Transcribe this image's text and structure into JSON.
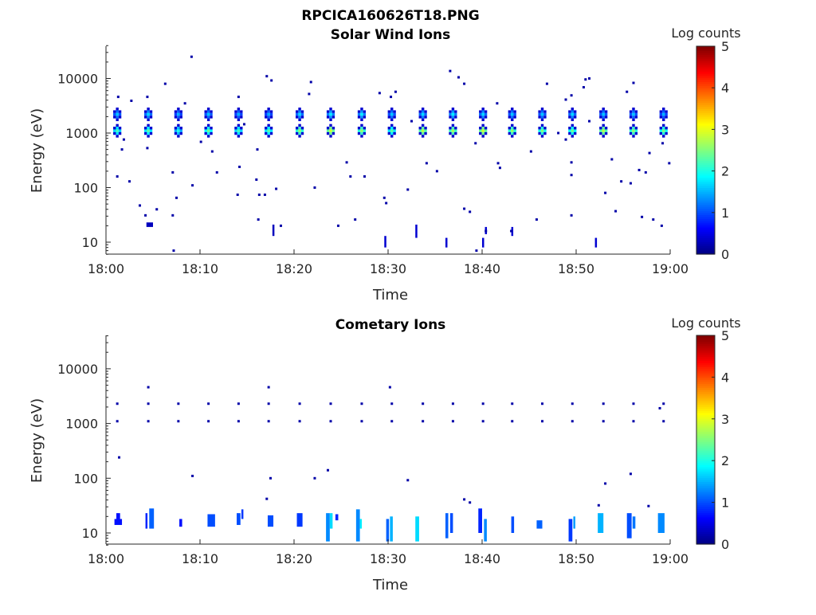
{
  "figure_title": "RPCICA160626T18.PNG",
  "chart_data": [
    {
      "type": "heatmap",
      "title": "Solar Wind Ions",
      "xlabel": "Time",
      "ylabel": "Energy (eV)",
      "x_tick_labels": [
        "18:00",
        "18:10",
        "18:20",
        "18:30",
        "18:40",
        "18:50",
        "19:00"
      ],
      "x_ticks_minutes": [
        0,
        10,
        20,
        30,
        40,
        50,
        60
      ],
      "xlim_minutes": [
        0,
        60
      ],
      "y_scale": "log",
      "y_tick_values": [
        10,
        100,
        1000,
        10000
      ],
      "y_tick_labels": [
        "10",
        "100",
        "1000",
        "10000"
      ],
      "ylim": [
        6,
        40000
      ],
      "colorbar": {
        "label": "Log counts",
        "range": [
          0,
          5
        ],
        "tick_labels": [
          "0",
          "1",
          "2",
          "3",
          "4",
          "5"
        ]
      },
      "blobs": [
        {
          "t": 1.2,
          "e": 1100,
          "peak": 2.2
        },
        {
          "t": 1.2,
          "e": 2200,
          "peak": 1.6
        },
        {
          "t": 4.5,
          "e": 1100,
          "peak": 2.3
        },
        {
          "t": 4.5,
          "e": 2200,
          "peak": 1.7
        },
        {
          "t": 7.7,
          "e": 1100,
          "peak": 2.0
        },
        {
          "t": 7.7,
          "e": 2200,
          "peak": 1.5
        },
        {
          "t": 10.9,
          "e": 1100,
          "peak": 2.4
        },
        {
          "t": 10.9,
          "e": 2200,
          "peak": 1.6
        },
        {
          "t": 14.1,
          "e": 1100,
          "peak": 2.2
        },
        {
          "t": 14.1,
          "e": 2200,
          "peak": 1.5
        },
        {
          "t": 17.3,
          "e": 1100,
          "peak": 2.3
        },
        {
          "t": 17.3,
          "e": 2200,
          "peak": 1.5
        },
        {
          "t": 20.6,
          "e": 1100,
          "peak": 2.6
        },
        {
          "t": 20.6,
          "e": 2200,
          "peak": 1.7
        },
        {
          "t": 23.9,
          "e": 1100,
          "peak": 2.9
        },
        {
          "t": 23.9,
          "e": 2200,
          "peak": 1.8
        },
        {
          "t": 27.2,
          "e": 1100,
          "peak": 2.6
        },
        {
          "t": 27.2,
          "e": 2200,
          "peak": 1.8
        },
        {
          "t": 30.4,
          "e": 1100,
          "peak": 2.3
        },
        {
          "t": 30.4,
          "e": 2200,
          "peak": 1.6
        },
        {
          "t": 33.7,
          "e": 1100,
          "peak": 2.8
        },
        {
          "t": 33.7,
          "e": 2200,
          "peak": 1.7
        },
        {
          "t": 36.9,
          "e": 1100,
          "peak": 2.7
        },
        {
          "t": 36.9,
          "e": 2200,
          "peak": 1.8
        },
        {
          "t": 40.1,
          "e": 1100,
          "peak": 2.9
        },
        {
          "t": 40.1,
          "e": 2200,
          "peak": 1.7
        },
        {
          "t": 43.2,
          "e": 1100,
          "peak": 2.6
        },
        {
          "t": 43.2,
          "e": 2200,
          "peak": 1.6
        },
        {
          "t": 46.4,
          "e": 1100,
          "peak": 2.5
        },
        {
          "t": 46.4,
          "e": 2200,
          "peak": 1.6
        },
        {
          "t": 49.6,
          "e": 1100,
          "peak": 2.4
        },
        {
          "t": 49.6,
          "e": 2200,
          "peak": 1.7
        },
        {
          "t": 52.9,
          "e": 1100,
          "peak": 2.8
        },
        {
          "t": 52.9,
          "e": 2200,
          "peak": 1.6
        },
        {
          "t": 56.1,
          "e": 1100,
          "peak": 2.6
        },
        {
          "t": 56.1,
          "e": 2200,
          "peak": 1.6
        },
        {
          "t": 59.3,
          "e": 1100,
          "peak": 2.5
        },
        {
          "t": 59.3,
          "e": 2200,
          "peak": 1.5
        }
      ],
      "dots": [
        [
          1.3,
          4600
        ],
        [
          1.9,
          760
        ],
        [
          1.7,
          500
        ],
        [
          1.2,
          160
        ],
        [
          2.5,
          130
        ],
        [
          2.7,
          3900
        ],
        [
          3.6,
          47
        ],
        [
          4.4,
          4600
        ],
        [
          4.4,
          530
        ],
        [
          4.2,
          31
        ],
        [
          5.4,
          40
        ],
        [
          6.3,
          8000
        ],
        [
          7.1,
          190
        ],
        [
          7.1,
          31
        ],
        [
          7.2,
          7
        ],
        [
          7.5,
          65
        ],
        [
          8.4,
          3500
        ],
        [
          9.1,
          25000
        ],
        [
          9.2,
          110
        ],
        [
          10.1,
          690
        ],
        [
          11.3,
          460
        ],
        [
          11.8,
          190
        ],
        [
          14.1,
          4600
        ],
        [
          14.2,
          240
        ],
        [
          14.0,
          74
        ],
        [
          14.7,
          1450
        ],
        [
          16.1,
          500
        ],
        [
          16.3,
          74
        ],
        [
          16.0,
          140
        ],
        [
          16.2,
          26
        ],
        [
          17.1,
          11000
        ],
        [
          17.6,
          9200
        ],
        [
          16.9,
          74
        ],
        [
          18.1,
          95
        ],
        [
          18.6,
          20
        ],
        [
          21.8,
          8600
        ],
        [
          21.6,
          5200
        ],
        [
          22.2,
          100
        ],
        [
          24.7,
          20
        ],
        [
          25.6,
          290
        ],
        [
          26.0,
          160
        ],
        [
          26.5,
          26
        ],
        [
          27.5,
          160
        ],
        [
          29.1,
          5400
        ],
        [
          29.6,
          65
        ],
        [
          29.8,
          52
        ],
        [
          30.3,
          4600
        ],
        [
          30.8,
          5700
        ],
        [
          32.1,
          92
        ],
        [
          32.5,
          1650
        ],
        [
          34.1,
          280
        ],
        [
          35.2,
          200
        ],
        [
          36.6,
          13700
        ],
        [
          37.5,
          10500
        ],
        [
          38.1,
          8000
        ],
        [
          38.1,
          41
        ],
        [
          38.7,
          36
        ],
        [
          39.3,
          650
        ],
        [
          39.4,
          7
        ],
        [
          40.4,
          16
        ],
        [
          41.6,
          3500
        ],
        [
          41.7,
          280
        ],
        [
          41.9,
          230
        ],
        [
          43.1,
          16
        ],
        [
          45.2,
          460
        ],
        [
          45.8,
          26
        ],
        [
          46.9,
          8000
        ],
        [
          48.1,
          1000
        ],
        [
          48.9,
          4100
        ],
        [
          49.5,
          4900
        ],
        [
          49.5,
          290
        ],
        [
          49.5,
          170
        ],
        [
          49.5,
          31
        ],
        [
          48.9,
          760
        ],
        [
          50.8,
          6900
        ],
        [
          51.0,
          9600
        ],
        [
          51.4,
          10000
        ],
        [
          51.4,
          1650
        ],
        [
          53.1,
          80
        ],
        [
          53.8,
          330
        ],
        [
          54.2,
          37
        ],
        [
          54.8,
          130
        ],
        [
          55.4,
          5700
        ],
        [
          55.8,
          120
        ],
        [
          56.1,
          8300
        ],
        [
          56.7,
          210
        ],
        [
          57.4,
          190
        ],
        [
          57.0,
          29
        ],
        [
          57.8,
          430
        ],
        [
          58.2,
          26
        ],
        [
          59.1,
          20
        ],
        [
          59.2,
          650
        ],
        [
          59.9,
          280
        ]
      ],
      "bars": [
        [
          4.3,
          5.0,
          19,
          23,
          0.3
        ],
        [
          17.7,
          17.9,
          13,
          21,
          0.3
        ],
        [
          29.6,
          29.8,
          8,
          13,
          0.4
        ],
        [
          32.9,
          33.1,
          12,
          21,
          0.4
        ],
        [
          36.1,
          36.3,
          8,
          12,
          0.4
        ],
        [
          40.0,
          40.2,
          8,
          12,
          0.4
        ],
        [
          40.3,
          40.5,
          14,
          19,
          0.4
        ],
        [
          43.1,
          43.3,
          13,
          19,
          0.4
        ],
        [
          52.0,
          52.2,
          8,
          12,
          0.4
        ]
      ]
    },
    {
      "type": "heatmap",
      "title": "Cometary Ions",
      "xlabel": "Time",
      "ylabel": "Energy (eV)",
      "x_tick_labels": [
        "18:00",
        "18:10",
        "18:20",
        "18:30",
        "18:40",
        "18:50",
        "19:00"
      ],
      "x_ticks_minutes": [
        0,
        10,
        20,
        30,
        40,
        50,
        60
      ],
      "xlim_minutes": [
        0,
        60
      ],
      "y_scale": "log",
      "y_tick_values": [
        10,
        100,
        1000,
        10000
      ],
      "y_tick_labels": [
        "10",
        "100",
        "1000",
        "10000"
      ],
      "ylim": [
        6,
        40000
      ],
      "colorbar": {
        "label": "Log counts",
        "range": [
          0,
          5
        ],
        "tick_labels": [
          "0",
          "1",
          "2",
          "3",
          "4",
          "5"
        ]
      },
      "blobs": [],
      "dots": [
        [
          1.2,
          1100
        ],
        [
          1.2,
          2300
        ],
        [
          4.5,
          1100
        ],
        [
          4.5,
          4600
        ],
        [
          4.5,
          2300
        ],
        [
          7.7,
          1100
        ],
        [
          7.7,
          2300
        ],
        [
          10.9,
          1100
        ],
        [
          10.9,
          2300
        ],
        [
          14.1,
          1100
        ],
        [
          14.1,
          2300
        ],
        [
          17.3,
          1100
        ],
        [
          17.3,
          2300
        ],
        [
          17.3,
          4600
        ],
        [
          20.6,
          1100
        ],
        [
          20.6,
          2300
        ],
        [
          23.9,
          1100
        ],
        [
          23.9,
          2300
        ],
        [
          27.2,
          1100
        ],
        [
          27.2,
          2300
        ],
        [
          30.4,
          1100
        ],
        [
          30.4,
          2300
        ],
        [
          30.2,
          4600
        ],
        [
          33.7,
          1100
        ],
        [
          33.7,
          2300
        ],
        [
          36.9,
          1100
        ],
        [
          36.9,
          2300
        ],
        [
          40.1,
          1100
        ],
        [
          40.1,
          2300
        ],
        [
          43.2,
          1100
        ],
        [
          43.2,
          2300
        ],
        [
          46.4,
          1100
        ],
        [
          46.4,
          2300
        ],
        [
          49.6,
          1100
        ],
        [
          49.6,
          2300
        ],
        [
          52.9,
          1100
        ],
        [
          52.9,
          2300
        ],
        [
          56.1,
          1100
        ],
        [
          56.1,
          2300
        ],
        [
          59.3,
          1100
        ],
        [
          59.3,
          2300
        ],
        [
          58.9,
          1900
        ],
        [
          1.4,
          240
        ],
        [
          9.2,
          110
        ],
        [
          17.5,
          100
        ],
        [
          22.2,
          100
        ],
        [
          23.6,
          140
        ],
        [
          32.1,
          92
        ],
        [
          38.1,
          41
        ],
        [
          38.7,
          36
        ],
        [
          53.1,
          80
        ],
        [
          55.8,
          120
        ],
        [
          57.7,
          31
        ],
        [
          17.1,
          42
        ],
        [
          52.4,
          32
        ]
      ],
      "bars": [
        [
          0.9,
          1.7,
          14,
          18,
          0.7
        ],
        [
          1.1,
          1.5,
          18,
          23,
          0.7
        ],
        [
          4.2,
          4.4,
          12,
          23,
          0.8
        ],
        [
          4.6,
          5.1,
          12,
          28,
          1.1
        ],
        [
          7.8,
          8.1,
          13,
          18,
          0.7
        ],
        [
          10.8,
          11.6,
          13,
          22,
          1.0
        ],
        [
          13.9,
          14.3,
          14,
          23,
          1.0
        ],
        [
          14.4,
          14.6,
          18,
          27,
          0.9
        ],
        [
          17.2,
          17.8,
          13,
          21,
          1.0
        ],
        [
          20.3,
          20.9,
          13,
          23,
          0.9
        ],
        [
          23.4,
          23.8,
          7,
          23,
          1.3
        ],
        [
          23.8,
          24.1,
          12,
          23,
          1.7
        ],
        [
          24.4,
          24.7,
          17,
          22,
          0.8
        ],
        [
          26.6,
          27.0,
          7,
          27,
          1.3
        ],
        [
          27.0,
          27.2,
          12,
          18,
          1.8
        ],
        [
          29.8,
          30.1,
          7,
          18,
          1.1
        ],
        [
          30.2,
          30.5,
          7,
          20,
          1.5
        ],
        [
          32.9,
          33.3,
          7,
          20,
          1.7
        ],
        [
          36.1,
          36.4,
          8,
          23,
          1.1
        ],
        [
          36.6,
          36.9,
          10,
          23,
          1.0
        ],
        [
          39.6,
          40.0,
          10,
          28,
          0.8
        ],
        [
          40.2,
          40.5,
          7,
          18,
          1.3
        ],
        [
          43.1,
          43.4,
          10,
          20,
          1.0
        ],
        [
          45.8,
          46.4,
          12,
          17,
          1.1
        ],
        [
          49.2,
          49.6,
          7,
          18,
          0.9
        ],
        [
          49.7,
          49.9,
          12,
          20,
          1.4
        ],
        [
          52.3,
          52.9,
          10,
          23,
          1.5
        ],
        [
          55.4,
          55.9,
          8,
          23,
          1.0
        ],
        [
          56.0,
          56.3,
          12,
          20,
          1.2
        ],
        [
          58.7,
          59.4,
          10,
          23,
          1.3
        ]
      ]
    }
  ]
}
